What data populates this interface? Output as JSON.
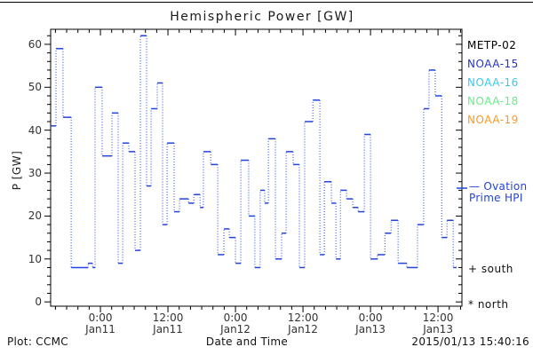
{
  "header": {
    "title": "Hemispheric Power [GW]"
  },
  "footer": {
    "plot_credit": "Plot: CCMC",
    "xaxis_title": "Date and Time",
    "timestamp": "2015/01/13 15:40:16"
  },
  "legend": {
    "satellites": [
      {
        "label": "METP-02",
        "color": "#000000"
      },
      {
        "label": "NOAA-15",
        "color": "#2233cc"
      },
      {
        "label": "NOAA-16",
        "color": "#33ccee"
      },
      {
        "label": "NOAA-18",
        "color": "#66ee88"
      },
      {
        "label": "NOAA-19",
        "color": "#ff9922"
      }
    ],
    "model": {
      "label_line1": "— Ovation",
      "label_line2": "Prime HPI",
      "color": "#2244dd"
    },
    "south_marker": "+ south",
    "north_marker": "* north"
  },
  "chart_data": {
    "type": "line",
    "subtype": "step-with-dash-markers",
    "title": "Hemispheric Power [GW]",
    "ylabel": "P [GW]",
    "xlabel": "Date and Time",
    "t_reference": "hours from 2015-01-11 00:00",
    "x_range_h": [
      -8.85,
      64.25
    ],
    "y_range": [
      -1.0,
      63.5
    ],
    "y_ticks_major": [
      0,
      10,
      20,
      30,
      40,
      50,
      60
    ],
    "y_minor_step": 2,
    "x_minor_step_h": 2,
    "x_ticks_major": [
      {
        "t": 0,
        "time": "0:00",
        "date": "Jan11"
      },
      {
        "t": 12,
        "time": "12:00",
        "date": "Jan11"
      },
      {
        "t": 24,
        "time": "0:00",
        "date": "Jan12"
      },
      {
        "t": 36,
        "time": "12:00",
        "date": "Jan12"
      },
      {
        "t": 48,
        "time": "0:00",
        "date": "Jan13"
      },
      {
        "t": 60,
        "time": "12:00",
        "date": "Jan13"
      }
    ],
    "series": [
      {
        "name": "Ovation Prime HPI",
        "color": "#2244dd",
        "t_end": 63.3,
        "points": [
          [
            -8.85,
            41
          ],
          [
            -7.9,
            59
          ],
          [
            -6.65,
            43
          ],
          [
            -5.2,
            8
          ],
          [
            -2.2,
            9
          ],
          [
            -1.4,
            8
          ],
          [
            -0.95,
            50
          ],
          [
            0.3,
            34
          ],
          [
            2.05,
            44
          ],
          [
            3.15,
            9
          ],
          [
            3.95,
            37
          ],
          [
            5.05,
            35
          ],
          [
            6.15,
            12
          ],
          [
            7.1,
            62
          ],
          [
            8.2,
            27
          ],
          [
            9.0,
            45
          ],
          [
            10.1,
            51
          ],
          [
            11.05,
            18
          ],
          [
            11.85,
            37
          ],
          [
            13.1,
            21
          ],
          [
            14.05,
            24
          ],
          [
            15.65,
            23
          ],
          [
            16.6,
            25
          ],
          [
            17.7,
            22
          ],
          [
            18.3,
            35
          ],
          [
            19.6,
            32
          ],
          [
            20.85,
            11
          ],
          [
            21.95,
            17
          ],
          [
            22.9,
            15
          ],
          [
            24.0,
            9
          ],
          [
            24.95,
            33
          ],
          [
            26.35,
            20
          ],
          [
            27.45,
            8
          ],
          [
            28.4,
            26
          ],
          [
            29.2,
            23
          ],
          [
            29.85,
            38
          ],
          [
            31.1,
            10
          ],
          [
            32.2,
            16
          ],
          [
            33.0,
            35
          ],
          [
            34.25,
            32
          ],
          [
            35.35,
            8
          ],
          [
            36.3,
            42
          ],
          [
            37.75,
            47
          ],
          [
            39.0,
            11
          ],
          [
            39.8,
            28
          ],
          [
            41.05,
            23
          ],
          [
            41.85,
            10
          ],
          [
            42.65,
            26
          ],
          [
            43.75,
            24
          ],
          [
            44.85,
            22
          ],
          [
            45.8,
            21
          ],
          [
            46.9,
            39
          ],
          [
            48.0,
            10
          ],
          [
            49.25,
            11
          ],
          [
            50.55,
            16
          ],
          [
            51.65,
            19
          ],
          [
            52.9,
            9
          ],
          [
            54.45,
            8
          ],
          [
            56.35,
            18
          ],
          [
            57.45,
            45
          ],
          [
            58.4,
            54
          ],
          [
            59.5,
            48
          ],
          [
            60.65,
            15
          ],
          [
            61.6,
            19
          ],
          [
            62.7,
            8
          ]
        ]
      }
    ]
  }
}
